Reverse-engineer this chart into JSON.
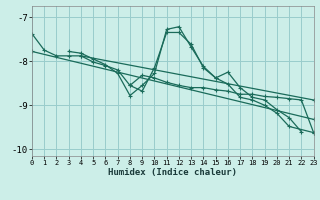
{
  "background_color": "#cceee8",
  "grid_color": "#99cccc",
  "line_color": "#1a6b5a",
  "xlabel": "Humidex (Indice chaleur)",
  "xlim": [
    0,
    23
  ],
  "ylim": [
    -10.15,
    -6.75
  ],
  "yticks": [
    -10,
    -9,
    -8,
    -7
  ],
  "xticks": [
    0,
    1,
    2,
    3,
    4,
    5,
    6,
    7,
    8,
    9,
    10,
    11,
    12,
    13,
    14,
    15,
    16,
    17,
    18,
    19,
    20,
    21,
    22,
    23
  ],
  "line_segments": [
    {
      "x": [
        0,
        1,
        2,
        3,
        4,
        5,
        6,
        7,
        8,
        9,
        10,
        11,
        12,
        13,
        14,
        15,
        16,
        17,
        18,
        19,
        20,
        21,
        22
      ],
      "y": [
        -7.38,
        -7.75,
        -7.88,
        -7.88,
        -7.88,
        -8.02,
        -8.1,
        -8.2,
        -8.55,
        -8.68,
        -8.15,
        -7.35,
        -7.35,
        -7.62,
        -8.15,
        -8.38,
        -8.25,
        -8.6,
        -8.82,
        -8.88,
        -9.1,
        -9.28,
        -9.6
      ]
    },
    {
      "x": [
        3,
        4,
        5,
        6,
        7,
        8,
        9,
        10,
        11,
        12,
        13,
        14,
        15,
        16,
        17,
        18,
        19,
        20,
        21,
        23
      ],
      "y": [
        -7.78,
        -7.82,
        -7.95,
        -8.08,
        -8.28,
        -8.78,
        -8.55,
        -8.28,
        -7.28,
        -7.22,
        -7.68,
        -8.12,
        -8.38,
        -8.52,
        -8.82,
        -8.88,
        -9.0,
        -9.18,
        -9.48,
        -9.62
      ]
    },
    {
      "x": [
        8,
        9,
        10,
        11,
        12,
        13,
        14,
        15,
        16,
        17,
        18,
        19,
        20,
        21,
        22,
        23
      ],
      "y": [
        -8.55,
        -8.32,
        -8.38,
        -8.48,
        -8.55,
        -8.6,
        -8.6,
        -8.65,
        -8.68,
        -8.75,
        -8.75,
        -8.8,
        -8.82,
        -8.85,
        -8.88,
        -9.62
      ]
    },
    {
      "x": [
        0,
        23
      ],
      "y": [
        -7.78,
        -9.32
      ]
    },
    {
      "x": [
        4,
        23
      ],
      "y": [
        -7.88,
        -8.88
      ]
    }
  ]
}
